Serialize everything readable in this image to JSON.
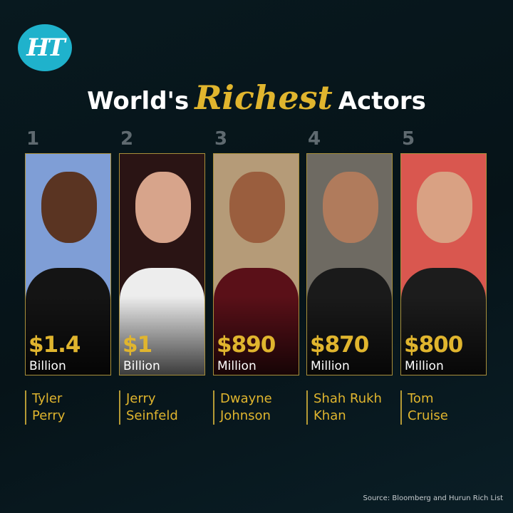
{
  "brand": {
    "logo_text": "HT",
    "logo_color": "#1fb2cc"
  },
  "title": {
    "prefix": "World's",
    "accent": "Richest",
    "suffix": "Actors",
    "accent_color": "#e0b52e"
  },
  "actors": [
    {
      "rank": "1",
      "amount": "$1.4",
      "unit": "Billion",
      "first": "Tyler",
      "last": "Perry",
      "bg": "#7f9ed6",
      "skin": "#5a3422",
      "cloth": "#141414"
    },
    {
      "rank": "2",
      "amount": "$1",
      "unit": "Billion",
      "first": "Jerry",
      "last": "Seinfeld",
      "bg": "#2a1414",
      "skin": "#d7a48b",
      "cloth": "#ededed"
    },
    {
      "rank": "3",
      "amount": "$890",
      "unit": "Million",
      "first": "Dwayne",
      "last": "Johnson",
      "bg": "#b59b78",
      "skin": "#9a5e3e",
      "cloth": "#5a1018"
    },
    {
      "rank": "4",
      "amount": "$870",
      "unit": "Million",
      "first": "Shah Rukh",
      "last": "Khan",
      "bg": "#6e6a62",
      "skin": "#b07b5c",
      "cloth": "#1a1a1a"
    },
    {
      "rank": "5",
      "amount": "$800",
      "unit": "Million",
      "first": "Tom",
      "last": "Cruise",
      "bg": "#d9574f",
      "skin": "#d9a183",
      "cloth": "#1c1c1c"
    }
  ],
  "source": "Source: Bloomberg and Hurun Rich List"
}
